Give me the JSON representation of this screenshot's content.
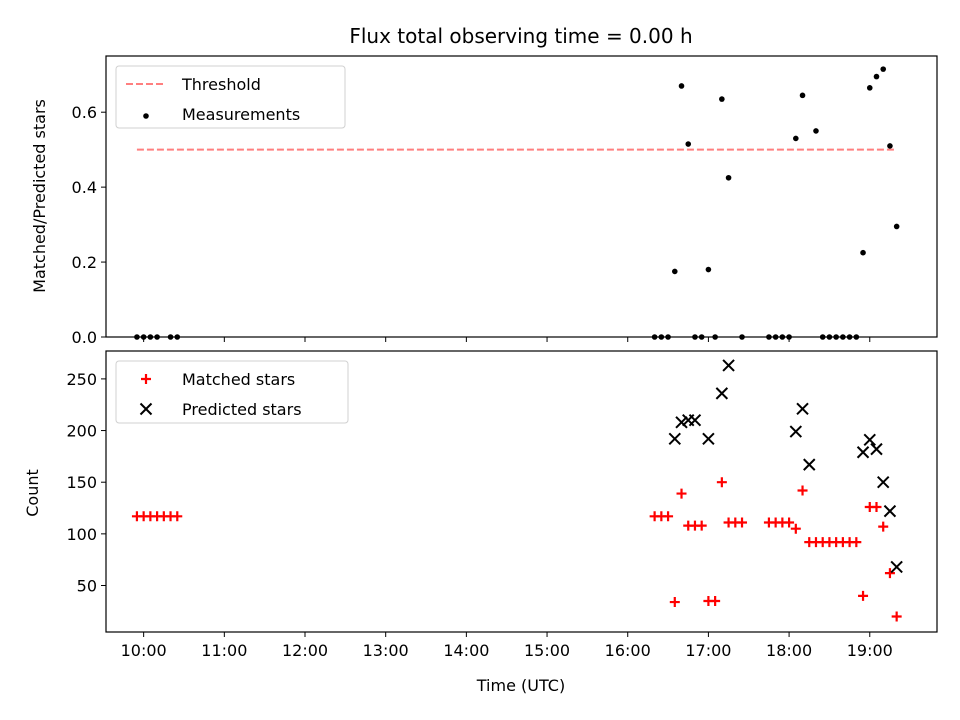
{
  "chart_data": [
    {
      "type": "scatter",
      "title": "Flux total observing time = 0.00 h",
      "ylabel": "Matched/Predicted stars",
      "xlabel": "",
      "xlim": [
        "09:32",
        "19:50"
      ],
      "ylim": [
        0,
        0.75
      ],
      "yticks": [
        "0.0",
        "0.2",
        "0.4",
        "0.6"
      ],
      "legend_position": "top-left",
      "series": [
        {
          "name": "Threshold",
          "style": "dashed-line",
          "color": "#ff7f7f",
          "x": [
            "09:55",
            "19:20"
          ],
          "y": [
            0.5,
            0.5
          ]
        },
        {
          "name": "Measurements",
          "style": "dot",
          "color": "#000000",
          "x": [
            "09:55",
            "10:00",
            "10:05",
            "10:10",
            "10:20",
            "10:25",
            "16:20",
            "16:25",
            "16:30",
            "16:35",
            "16:40",
            "16:45",
            "16:50",
            "16:55",
            "17:00",
            "17:05",
            "17:10",
            "17:15",
            "17:25",
            "17:45",
            "17:50",
            "17:55",
            "18:00",
            "18:05",
            "18:10",
            "18:20",
            "18:25",
            "18:30",
            "18:35",
            "18:40",
            "18:45",
            "18:50",
            "18:55",
            "19:00",
            "19:05",
            "19:10",
            "19:15",
            "19:20"
          ],
          "y": [
            0,
            0,
            0,
            0,
            0,
            0,
            0,
            0,
            0,
            0.175,
            0.67,
            0.515,
            0,
            0,
            0.18,
            0,
            0.635,
            0.425,
            0,
            0,
            0,
            0,
            0,
            0.53,
            0.645,
            0.55,
            0,
            0,
            0,
            0,
            0,
            0,
            0.225,
            0.665,
            0.695,
            0.715,
            0.51,
            0.295
          ]
        }
      ]
    },
    {
      "type": "scatter",
      "ylabel": "Count",
      "xlabel": "Time (UTC)",
      "xlim": [
        "09:32",
        "19:50"
      ],
      "ylim": [
        5,
        277
      ],
      "yticks": [
        "50",
        "100",
        "150",
        "200",
        "250"
      ],
      "xticks": [
        "10:00",
        "11:00",
        "12:00",
        "13:00",
        "14:00",
        "15:00",
        "16:00",
        "17:00",
        "18:00",
        "19:00"
      ],
      "legend_position": "top-left",
      "series": [
        {
          "name": "Matched stars",
          "style": "plus",
          "color": "#ff0000",
          "x": [
            "09:55",
            "10:00",
            "10:05",
            "10:10",
            "10:15",
            "10:20",
            "10:25",
            "16:20",
            "16:25",
            "16:30",
            "16:35",
            "16:40",
            "16:45",
            "16:50",
            "16:55",
            "17:00",
            "17:05",
            "17:10",
            "17:15",
            "17:20",
            "17:25",
            "17:45",
            "17:50",
            "17:55",
            "18:00",
            "18:05",
            "18:10",
            "18:15",
            "18:20",
            "18:25",
            "18:30",
            "18:35",
            "18:40",
            "18:45",
            "18:50",
            "18:55",
            "19:00",
            "19:05",
            "19:10",
            "19:15",
            "19:20"
          ],
          "y": [
            117,
            117,
            117,
            117,
            117,
            117,
            117,
            117,
            117,
            117,
            34,
            139,
            108,
            108,
            108,
            35,
            35,
            150,
            111,
            111,
            111,
            111,
            111,
            111,
            111,
            105,
            142,
            92,
            92,
            92,
            92,
            92,
            92,
            92,
            92,
            40,
            126,
            126,
            107,
            62,
            20
          ]
        },
        {
          "name": "Predicted stars",
          "style": "x",
          "color": "#000000",
          "x": [
            "16:35",
            "16:40",
            "16:45",
            "16:50",
            "17:00",
            "17:10",
            "17:15",
            "18:05",
            "18:10",
            "18:15",
            "18:55",
            "19:00",
            "19:05",
            "19:10",
            "19:15",
            "19:20"
          ],
          "y": [
            192,
            208,
            210,
            210,
            192,
            236,
            263,
            199,
            221,
            167,
            179,
            191,
            182,
            150,
            122,
            68
          ]
        }
      ]
    }
  ]
}
